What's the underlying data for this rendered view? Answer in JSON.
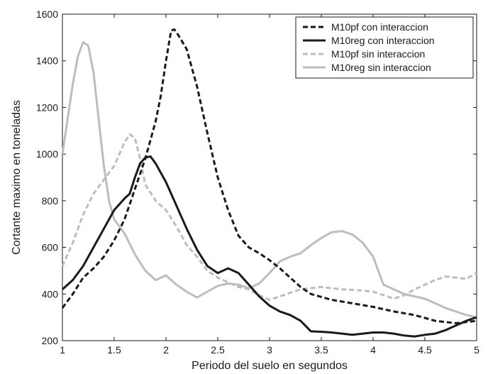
{
  "chart_data": {
    "type": "line",
    "title": "",
    "xlabel": "Periodo del suelo en segundos",
    "ylabel": "Cortante maximo en toneladas",
    "xlim": [
      1,
      5
    ],
    "ylim": [
      200,
      1600
    ],
    "x_ticks": [
      1,
      1.5,
      2,
      2.5,
      3,
      3.5,
      4,
      4.5,
      5
    ],
    "x_tick_labels": [
      "1",
      "1.5",
      "2",
      "2.5",
      "3",
      "3.5",
      "4",
      "4.5",
      "5"
    ],
    "y_ticks": [
      200,
      400,
      600,
      800,
      1000,
      1200,
      1400,
      1600
    ],
    "y_tick_labels": [
      "200",
      "400",
      "600",
      "800",
      "1000",
      "1200",
      "1400",
      "1600"
    ],
    "grid": false,
    "legend_position": "top-right",
    "series": [
      {
        "name": "M10pf con interaccion",
        "color": "#1a1a1a",
        "dash": "dashed",
        "points": [
          [
            1.0,
            340
          ],
          [
            1.1,
            400
          ],
          [
            1.2,
            470
          ],
          [
            1.3,
            510
          ],
          [
            1.4,
            560
          ],
          [
            1.5,
            630
          ],
          [
            1.6,
            720
          ],
          [
            1.7,
            850
          ],
          [
            1.8,
            980
          ],
          [
            1.9,
            1140
          ],
          [
            1.95,
            1250
          ],
          [
            2.0,
            1400
          ],
          [
            2.05,
            1530
          ],
          [
            2.08,
            1535
          ],
          [
            2.12,
            1510
          ],
          [
            2.2,
            1450
          ],
          [
            2.3,
            1290
          ],
          [
            2.4,
            1090
          ],
          [
            2.5,
            900
          ],
          [
            2.6,
            760
          ],
          [
            2.7,
            650
          ],
          [
            2.8,
            600
          ],
          [
            2.9,
            575
          ],
          [
            3.0,
            545
          ],
          [
            3.1,
            510
          ],
          [
            3.2,
            470
          ],
          [
            3.3,
            430
          ],
          [
            3.4,
            400
          ],
          [
            3.6,
            375
          ],
          [
            3.8,
            360
          ],
          [
            4.0,
            345
          ],
          [
            4.2,
            325
          ],
          [
            4.4,
            310
          ],
          [
            4.6,
            285
          ],
          [
            4.8,
            275
          ],
          [
            5.0,
            285
          ]
        ]
      },
      {
        "name": "M10reg con interaccion",
        "color": "#1a1a1a",
        "dash": "solid",
        "points": [
          [
            1.0,
            420
          ],
          [
            1.1,
            460
          ],
          [
            1.2,
            520
          ],
          [
            1.3,
            600
          ],
          [
            1.4,
            680
          ],
          [
            1.5,
            760
          ],
          [
            1.6,
            810
          ],
          [
            1.65,
            830
          ],
          [
            1.7,
            900
          ],
          [
            1.75,
            960
          ],
          [
            1.8,
            985
          ],
          [
            1.85,
            990
          ],
          [
            1.9,
            960
          ],
          [
            2.0,
            880
          ],
          [
            2.1,
            780
          ],
          [
            2.2,
            680
          ],
          [
            2.3,
            590
          ],
          [
            2.4,
            520
          ],
          [
            2.5,
            490
          ],
          [
            2.6,
            510
          ],
          [
            2.7,
            490
          ],
          [
            2.8,
            440
          ],
          [
            2.9,
            390
          ],
          [
            3.0,
            350
          ],
          [
            3.1,
            325
          ],
          [
            3.2,
            310
          ],
          [
            3.3,
            285
          ],
          [
            3.4,
            240
          ],
          [
            3.5,
            238
          ],
          [
            3.6,
            235
          ],
          [
            3.7,
            230
          ],
          [
            3.8,
            225
          ],
          [
            3.9,
            230
          ],
          [
            4.0,
            235
          ],
          [
            4.1,
            235
          ],
          [
            4.2,
            230
          ],
          [
            4.3,
            222
          ],
          [
            4.4,
            218
          ],
          [
            4.5,
            225
          ],
          [
            4.6,
            230
          ],
          [
            4.7,
            245
          ],
          [
            4.8,
            265
          ],
          [
            4.9,
            285
          ],
          [
            5.0,
            300
          ]
        ]
      },
      {
        "name": "M10pf sin interaccion",
        "color": "#bdbdbd",
        "dash": "dashed",
        "points": [
          [
            1.0,
            520
          ],
          [
            1.1,
            620
          ],
          [
            1.2,
            740
          ],
          [
            1.3,
            830
          ],
          [
            1.4,
            890
          ],
          [
            1.5,
            950
          ],
          [
            1.6,
            1050
          ],
          [
            1.65,
            1085
          ],
          [
            1.7,
            1070
          ],
          [
            1.75,
            980
          ],
          [
            1.8,
            870
          ],
          [
            1.9,
            800
          ],
          [
            2.0,
            760
          ],
          [
            2.1,
            690
          ],
          [
            2.2,
            610
          ],
          [
            2.3,
            560
          ],
          [
            2.4,
            500
          ],
          [
            2.5,
            470
          ],
          [
            2.6,
            450
          ],
          [
            2.7,
            430
          ],
          [
            2.8,
            420
          ],
          [
            2.9,
            395
          ],
          [
            3.0,
            375
          ],
          [
            3.1,
            390
          ],
          [
            3.2,
            405
          ],
          [
            3.3,
            420
          ],
          [
            3.4,
            425
          ],
          [
            3.5,
            430
          ],
          [
            3.6,
            425
          ],
          [
            3.7,
            420
          ],
          [
            3.8,
            418
          ],
          [
            3.9,
            415
          ],
          [
            4.0,
            410
          ],
          [
            4.1,
            395
          ],
          [
            4.2,
            380
          ],
          [
            4.3,
            395
          ],
          [
            4.4,
            420
          ],
          [
            4.5,
            440
          ],
          [
            4.6,
            460
          ],
          [
            4.7,
            475
          ],
          [
            4.8,
            470
          ],
          [
            4.9,
            465
          ],
          [
            5.0,
            490
          ]
        ]
      },
      {
        "name": "M10reg sin interaccion",
        "color": "#bdbdbd",
        "dash": "solid",
        "points": [
          [
            1.0,
            1000
          ],
          [
            1.05,
            1150
          ],
          [
            1.1,
            1300
          ],
          [
            1.15,
            1420
          ],
          [
            1.2,
            1480
          ],
          [
            1.25,
            1465
          ],
          [
            1.3,
            1350
          ],
          [
            1.35,
            1150
          ],
          [
            1.4,
            950
          ],
          [
            1.45,
            800
          ],
          [
            1.5,
            720
          ],
          [
            1.6,
            660
          ],
          [
            1.7,
            570
          ],
          [
            1.8,
            500
          ],
          [
            1.9,
            460
          ],
          [
            2.0,
            480
          ],
          [
            2.1,
            440
          ],
          [
            2.2,
            410
          ],
          [
            2.3,
            385
          ],
          [
            2.4,
            410
          ],
          [
            2.5,
            435
          ],
          [
            2.6,
            445
          ],
          [
            2.7,
            440
          ],
          [
            2.8,
            425
          ],
          [
            2.9,
            445
          ],
          [
            3.0,
            490
          ],
          [
            3.1,
            540
          ],
          [
            3.2,
            560
          ],
          [
            3.3,
            575
          ],
          [
            3.4,
            610
          ],
          [
            3.5,
            640
          ],
          [
            3.6,
            665
          ],
          [
            3.7,
            670
          ],
          [
            3.8,
            655
          ],
          [
            3.9,
            620
          ],
          [
            4.0,
            560
          ],
          [
            4.1,
            440
          ],
          [
            4.2,
            420
          ],
          [
            4.3,
            400
          ],
          [
            4.4,
            390
          ],
          [
            4.5,
            380
          ],
          [
            4.6,
            360
          ],
          [
            4.7,
            340
          ],
          [
            4.8,
            325
          ],
          [
            4.9,
            310
          ],
          [
            5.0,
            300
          ]
        ]
      }
    ]
  }
}
